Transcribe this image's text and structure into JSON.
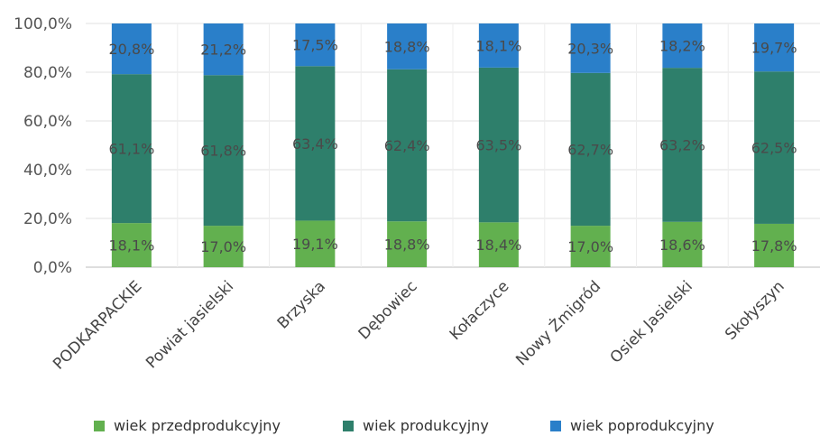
{
  "chart_data": {
    "type": "bar",
    "stacked": true,
    "percent": true,
    "categories": [
      "PODKARPACKIE",
      "Powiat jasielski",
      "Brzyska",
      "Dębowiec",
      "Kołaczyce",
      "Nowy Żmigród",
      "Osiek Jasielski",
      "Skołyszyn"
    ],
    "series": [
      {
        "name": "wiek przedprodukcyjny",
        "color": "#62b04f",
        "values": [
          18.1,
          17.0,
          19.1,
          18.8,
          18.4,
          17.0,
          18.6,
          17.8
        ],
        "labels": [
          "18,1%",
          "17,0%",
          "19,1%",
          "18,8%",
          "18,4%",
          "17,0%",
          "18,6%",
          "17,8%"
        ]
      },
      {
        "name": "wiek produkcyjny",
        "color": "#2e7f6b",
        "values": [
          61.1,
          61.8,
          63.4,
          62.4,
          63.5,
          62.7,
          63.2,
          62.5
        ],
        "labels": [
          "61,1%",
          "61,8%",
          "63,4%",
          "62,4%",
          "63,5%",
          "62,7%",
          "63,2%",
          "62,5%"
        ]
      },
      {
        "name": "wiek poprodukcyjny",
        "color": "#2a7fc9",
        "values": [
          20.8,
          21.2,
          17.5,
          18.8,
          18.1,
          20.3,
          18.2,
          19.7
        ],
        "labels": [
          "20,8%",
          "21,2%",
          "17,5%",
          "18,8%",
          "18,1%",
          "20,3%",
          "18,2%",
          "19,7%"
        ]
      }
    ],
    "yticks": [
      "0,0%",
      "20,0%",
      "40,0%",
      "60,0%",
      "80,0%",
      "100,0%"
    ],
    "ylim": [
      0,
      100
    ],
    "grid": true,
    "legend": "bottom"
  }
}
